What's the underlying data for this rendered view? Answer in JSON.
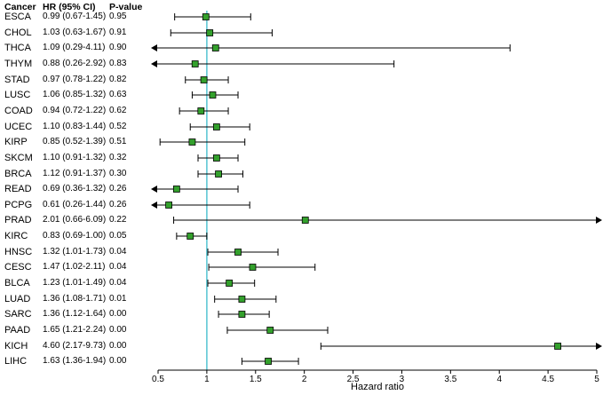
{
  "chart_data": {
    "type": "forest",
    "title": "",
    "columns": [
      "Cancer",
      "HR (95% CI)",
      "P-value"
    ],
    "xlabel": "Hazard ratio",
    "xlim": [
      0.5,
      5
    ],
    "xticks": [
      "0.5",
      "1",
      "1.5",
      "2",
      "2.5",
      "3",
      "3.5",
      "4",
      "4.5",
      "5"
    ],
    "reference_line": 1,
    "legend": "green square = hazard ratio point estimate, horizontal whiskers = 95% CI, arrows = CI exceeds axis range",
    "rows": [
      {
        "cancer": "ESCA",
        "hr_ci": "0.99 (0.67-1.45)",
        "p_value": "0.95",
        "hr": 0.99,
        "lo": 0.67,
        "hi": 1.45
      },
      {
        "cancer": "CHOL",
        "hr_ci": "1.03 (0.63-1.67)",
        "p_value": "0.91",
        "hr": 1.03,
        "lo": 0.63,
        "hi": 1.67
      },
      {
        "cancer": "THCA",
        "hr_ci": "1.09 (0.29-4.11)",
        "p_value": "0.90",
        "hr": 1.09,
        "lo": 0.29,
        "hi": 4.11
      },
      {
        "cancer": "THYM",
        "hr_ci": "0.88 (0.26-2.92)",
        "p_value": "0.83",
        "hr": 0.88,
        "lo": 0.26,
        "hi": 2.92
      },
      {
        "cancer": "STAD",
        "hr_ci": "0.97 (0.78-1.22)",
        "p_value": "0.82",
        "hr": 0.97,
        "lo": 0.78,
        "hi": 1.22
      },
      {
        "cancer": "LUSC",
        "hr_ci": "1.06 (0.85-1.32)",
        "p_value": "0.63",
        "hr": 1.06,
        "lo": 0.85,
        "hi": 1.32
      },
      {
        "cancer": "COAD",
        "hr_ci": "0.94 (0.72-1.22)",
        "p_value": "0.62",
        "hr": 0.94,
        "lo": 0.72,
        "hi": 1.22
      },
      {
        "cancer": "UCEC",
        "hr_ci": "1.10 (0.83-1.44)",
        "p_value": "0.52",
        "hr": 1.1,
        "lo": 0.83,
        "hi": 1.44
      },
      {
        "cancer": "KIRP",
        "hr_ci": "0.85 (0.52-1.39)",
        "p_value": "0.51",
        "hr": 0.85,
        "lo": 0.52,
        "hi": 1.39
      },
      {
        "cancer": "SKCM",
        "hr_ci": "1.10 (0.91-1.32)",
        "p_value": "0.32",
        "hr": 1.1,
        "lo": 0.91,
        "hi": 1.32
      },
      {
        "cancer": "BRCA",
        "hr_ci": "1.12 (0.91-1.37)",
        "p_value": "0.30",
        "hr": 1.12,
        "lo": 0.91,
        "hi": 1.37
      },
      {
        "cancer": "READ",
        "hr_ci": "0.69 (0.36-1.32)",
        "p_value": "0.26",
        "hr": 0.69,
        "lo": 0.36,
        "hi": 1.32
      },
      {
        "cancer": "PCPG",
        "hr_ci": "0.61 (0.26-1.44)",
        "p_value": "0.26",
        "hr": 0.61,
        "lo": 0.26,
        "hi": 1.44
      },
      {
        "cancer": "PRAD",
        "hr_ci": "2.01 (0.66-6.09)",
        "p_value": "0.22",
        "hr": 2.01,
        "lo": 0.66,
        "hi": 6.09
      },
      {
        "cancer": "KIRC",
        "hr_ci": "0.83 (0.69-1.00)",
        "p_value": "0.05",
        "hr": 0.83,
        "lo": 0.69,
        "hi": 1.0
      },
      {
        "cancer": "HNSC",
        "hr_ci": "1.32 (1.01-1.73)",
        "p_value": "0.04",
        "hr": 1.32,
        "lo": 1.01,
        "hi": 1.73
      },
      {
        "cancer": "CESC",
        "hr_ci": "1.47 (1.02-2.11)",
        "p_value": "0.04",
        "hr": 1.47,
        "lo": 1.02,
        "hi": 2.11
      },
      {
        "cancer": "BLCA",
        "hr_ci": "1.23 (1.01-1.49)",
        "p_value": "0.04",
        "hr": 1.23,
        "lo": 1.01,
        "hi": 1.49
      },
      {
        "cancer": "LUAD",
        "hr_ci": "1.36 (1.08-1.71)",
        "p_value": "0.01",
        "hr": 1.36,
        "lo": 1.08,
        "hi": 1.71
      },
      {
        "cancer": "SARC",
        "hr_ci": "1.36 (1.12-1.64)",
        "p_value": "0.00",
        "hr": 1.36,
        "lo": 1.12,
        "hi": 1.64
      },
      {
        "cancer": "PAAD",
        "hr_ci": "1.65 (1.21-2.24)",
        "p_value": "0.00",
        "hr": 1.65,
        "lo": 1.21,
        "hi": 2.24
      },
      {
        "cancer": "KICH",
        "hr_ci": "4.60 (2.17-9.73)",
        "p_value": "0.00",
        "hr": 4.6,
        "lo": 2.17,
        "hi": 9.73
      },
      {
        "cancer": "LIHC",
        "hr_ci": "1.63 (1.36-1.94)",
        "p_value": "0.00",
        "hr": 1.63,
        "lo": 1.36,
        "hi": 1.94
      }
    ]
  },
  "colors": {
    "marker_fill": "#33a02c",
    "marker_border": "#000000",
    "reference_line": "#5ec8d4",
    "error_bar": "#000000",
    "axis": "#000000",
    "text": "#000000",
    "background": "#ffffff"
  }
}
